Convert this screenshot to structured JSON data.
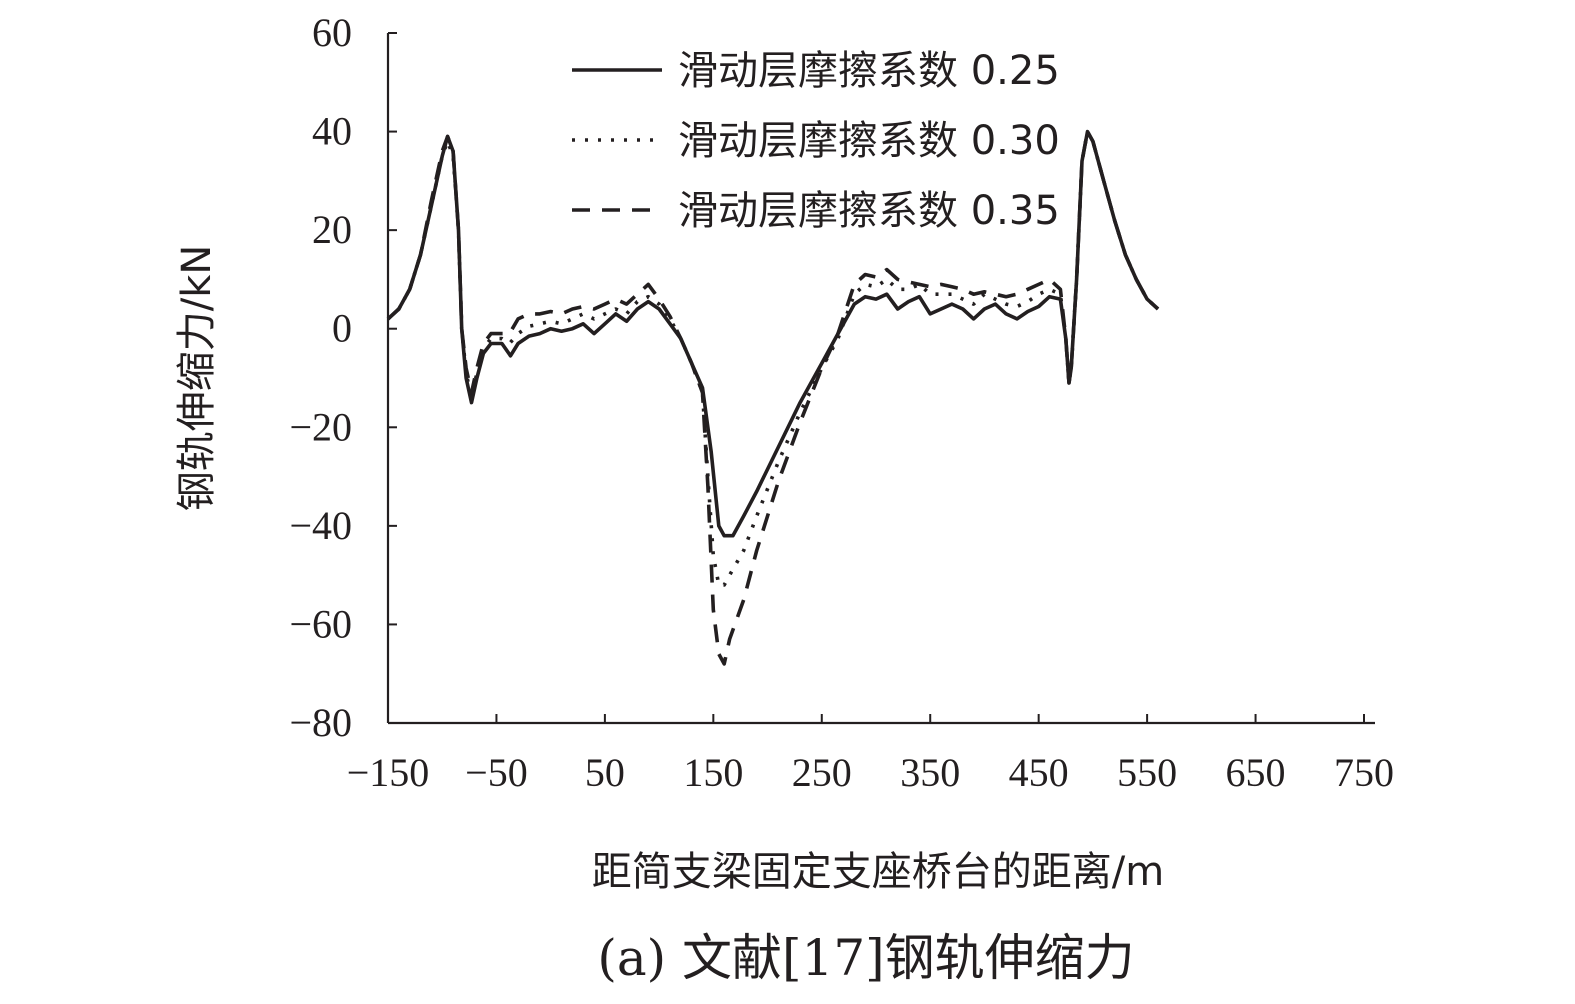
{
  "chart_data": {
    "type": "line",
    "title": "",
    "caption": "(a) 文献[17]钢轨伸缩力",
    "xlabel": "距简支梁固定支座桥台的距离/m",
    "ylabel": "钢轨伸缩力/kN",
    "xlim": [
      -150,
      750
    ],
    "ylim": [
      -80,
      60
    ],
    "xticks": [
      -150,
      -50,
      50,
      150,
      250,
      350,
      450,
      550,
      650,
      750
    ],
    "yticks": [
      -80,
      -60,
      -40,
      -20,
      0,
      20,
      40,
      60
    ],
    "xtick_labels": [
      "−150",
      "−50",
      "50",
      "150",
      "250",
      "350",
      "450",
      "550",
      "650",
      "750"
    ],
    "ytick_labels": [
      "−80",
      "−60",
      "−40",
      "−20",
      "0",
      "20",
      "40",
      "60"
    ],
    "grid": false,
    "legend_position": "top-center",
    "series": [
      {
        "name": "滑动层摩擦系数 0.25",
        "style": "solid",
        "color": "#231f20",
        "points": [
          [
            -150,
            2
          ],
          [
            -140,
            4
          ],
          [
            -130,
            8
          ],
          [
            -120,
            15
          ],
          [
            -110,
            25
          ],
          [
            -100,
            35
          ],
          [
            -95,
            39
          ],
          [
            -90,
            36
          ],
          [
            -85,
            20
          ],
          [
            -82,
            0
          ],
          [
            -78,
            -10
          ],
          [
            -73,
            -15
          ],
          [
            -68,
            -10
          ],
          [
            -62,
            -5
          ],
          [
            -55,
            -3
          ],
          [
            -45,
            -3
          ],
          [
            -37,
            -5.5
          ],
          [
            -30,
            -3
          ],
          [
            -20,
            -1.5
          ],
          [
            -10,
            -1
          ],
          [
            0,
            0
          ],
          [
            10,
            -0.5
          ],
          [
            20,
            0
          ],
          [
            30,
            1
          ],
          [
            40,
            -1
          ],
          [
            50,
            1
          ],
          [
            60,
            3
          ],
          [
            70,
            1.5
          ],
          [
            80,
            4
          ],
          [
            90,
            5.5
          ],
          [
            100,
            4
          ],
          [
            110,
            1
          ],
          [
            120,
            -2
          ],
          [
            130,
            -7
          ],
          [
            140,
            -12
          ],
          [
            148,
            -25
          ],
          [
            155,
            -40
          ],
          [
            160,
            -42
          ],
          [
            168,
            -42
          ],
          [
            178,
            -38
          ],
          [
            190,
            -33
          ],
          [
            210,
            -24
          ],
          [
            230,
            -15
          ],
          [
            250,
            -7
          ],
          [
            265,
            -1
          ],
          [
            280,
            5
          ],
          [
            290,
            6.5
          ],
          [
            300,
            6
          ],
          [
            310,
            7
          ],
          [
            320,
            4
          ],
          [
            330,
            5.5
          ],
          [
            340,
            6.5
          ],
          [
            350,
            3
          ],
          [
            360,
            4
          ],
          [
            370,
            5
          ],
          [
            380,
            4
          ],
          [
            390,
            2
          ],
          [
            400,
            4
          ],
          [
            410,
            5
          ],
          [
            420,
            3
          ],
          [
            430,
            2
          ],
          [
            440,
            3.5
          ],
          [
            450,
            4.5
          ],
          [
            460,
            6.5
          ],
          [
            470,
            6
          ],
          [
            475,
            -2
          ],
          [
            478,
            -11
          ],
          [
            480,
            -8
          ],
          [
            485,
            10
          ],
          [
            490,
            34
          ],
          [
            495,
            40
          ],
          [
            500,
            38
          ],
          [
            510,
            30
          ],
          [
            520,
            22
          ],
          [
            530,
            15
          ],
          [
            540,
            10
          ],
          [
            550,
            6
          ],
          [
            560,
            4
          ]
        ]
      },
      {
        "name": "滑动层摩擦系数 0.30",
        "style": "dotted",
        "color": "#231f20",
        "points": [
          [
            -150,
            2
          ],
          [
            -140,
            4
          ],
          [
            -130,
            8
          ],
          [
            -120,
            15
          ],
          [
            -110,
            25
          ],
          [
            -100,
            35
          ],
          [
            -95,
            38
          ],
          [
            -90,
            35
          ],
          [
            -85,
            20
          ],
          [
            -82,
            0
          ],
          [
            -78,
            -9
          ],
          [
            -73,
            -14
          ],
          [
            -68,
            -9
          ],
          [
            -62,
            -4
          ],
          [
            -55,
            -2
          ],
          [
            -45,
            -2
          ],
          [
            -38,
            -3
          ],
          [
            -30,
            -1
          ],
          [
            -20,
            0.5
          ],
          [
            -10,
            1
          ],
          [
            0,
            1.5
          ],
          [
            10,
            1
          ],
          [
            20,
            2
          ],
          [
            30,
            3
          ],
          [
            40,
            2
          ],
          [
            50,
            3
          ],
          [
            60,
            4
          ],
          [
            70,
            3
          ],
          [
            80,
            5.5
          ],
          [
            90,
            6.5
          ],
          [
            100,
            5
          ],
          [
            110,
            2
          ],
          [
            120,
            -2
          ],
          [
            130,
            -7
          ],
          [
            140,
            -13
          ],
          [
            145,
            -30
          ],
          [
            150,
            -46
          ],
          [
            155,
            -52
          ],
          [
            160,
            -52
          ],
          [
            165,
            -50
          ],
          [
            178,
            -45
          ],
          [
            190,
            -38
          ],
          [
            210,
            -27
          ],
          [
            230,
            -17
          ],
          [
            250,
            -8
          ],
          [
            265,
            -2
          ],
          [
            280,
            7
          ],
          [
            290,
            9
          ],
          [
            300,
            8.5
          ],
          [
            310,
            10
          ],
          [
            320,
            8
          ],
          [
            330,
            8
          ],
          [
            340,
            9
          ],
          [
            350,
            7
          ],
          [
            360,
            7
          ],
          [
            370,
            7
          ],
          [
            380,
            6
          ],
          [
            390,
            5
          ],
          [
            400,
            7
          ],
          [
            410,
            6
          ],
          [
            420,
            5
          ],
          [
            430,
            4.5
          ],
          [
            440,
            5.5
          ],
          [
            450,
            7
          ],
          [
            460,
            8
          ],
          [
            470,
            7
          ],
          [
            475,
            -2
          ],
          [
            478,
            -11
          ],
          [
            480,
            -8
          ],
          [
            485,
            10
          ],
          [
            490,
            34
          ],
          [
            495,
            40
          ],
          [
            500,
            38
          ],
          [
            510,
            30
          ],
          [
            520,
            22
          ],
          [
            530,
            15
          ],
          [
            540,
            10
          ],
          [
            550,
            6
          ],
          [
            560,
            4
          ]
        ]
      },
      {
        "name": "滑动层摩擦系数 0.35",
        "style": "dashed",
        "color": "#231f20",
        "points": [
          [
            -150,
            2
          ],
          [
            -140,
            4
          ],
          [
            -130,
            8
          ],
          [
            -120,
            15
          ],
          [
            -110,
            26
          ],
          [
            -100,
            36
          ],
          [
            -95,
            39
          ],
          [
            -90,
            36
          ],
          [
            -85,
            20
          ],
          [
            -82,
            0
          ],
          [
            -78,
            -8
          ],
          [
            -73,
            -13
          ],
          [
            -68,
            -8
          ],
          [
            -62,
            -3
          ],
          [
            -55,
            -1
          ],
          [
            -45,
            -1
          ],
          [
            -38,
            -1
          ],
          [
            -30,
            2
          ],
          [
            -20,
            3
          ],
          [
            -10,
            3
          ],
          [
            0,
            3.5
          ],
          [
            10,
            3
          ],
          [
            20,
            4
          ],
          [
            30,
            4.5
          ],
          [
            40,
            4
          ],
          [
            50,
            5
          ],
          [
            60,
            6
          ],
          [
            70,
            5
          ],
          [
            80,
            7
          ],
          [
            90,
            9
          ],
          [
            100,
            6
          ],
          [
            110,
            2.5
          ],
          [
            120,
            -2
          ],
          [
            130,
            -7
          ],
          [
            140,
            -13
          ],
          [
            145,
            -32
          ],
          [
            150,
            -57
          ],
          [
            155,
            -66
          ],
          [
            160,
            -68
          ],
          [
            165,
            -63
          ],
          [
            178,
            -55
          ],
          [
            190,
            -45
          ],
          [
            210,
            -31
          ],
          [
            230,
            -19
          ],
          [
            250,
            -8
          ],
          [
            265,
            -1
          ],
          [
            280,
            9
          ],
          [
            290,
            11
          ],
          [
            300,
            10.5
          ],
          [
            310,
            12
          ],
          [
            320,
            10
          ],
          [
            330,
            9.5
          ],
          [
            340,
            9
          ],
          [
            350,
            8.5
          ],
          [
            360,
            9
          ],
          [
            370,
            8.5
          ],
          [
            380,
            8
          ],
          [
            390,
            7
          ],
          [
            400,
            7.5
          ],
          [
            410,
            7
          ],
          [
            420,
            6.5
          ],
          [
            430,
            7
          ],
          [
            440,
            8
          ],
          [
            450,
            9
          ],
          [
            460,
            10
          ],
          [
            470,
            8
          ],
          [
            475,
            -2
          ],
          [
            478,
            -11
          ],
          [
            480,
            -8
          ],
          [
            485,
            10
          ],
          [
            490,
            34
          ],
          [
            495,
            40
          ],
          [
            500,
            38
          ],
          [
            510,
            30
          ],
          [
            520,
            22
          ],
          [
            530,
            15
          ],
          [
            540,
            10
          ],
          [
            550,
            6
          ],
          [
            560,
            4
          ]
        ]
      }
    ]
  }
}
